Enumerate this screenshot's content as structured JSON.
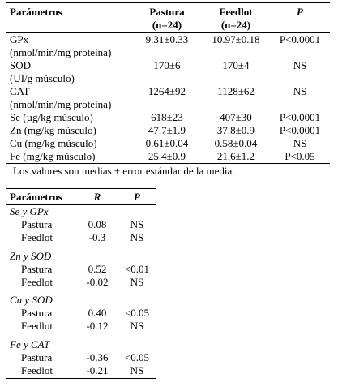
{
  "table1": {
    "headers": {
      "param": "Parámetros",
      "pastura": "Pastura",
      "pastura_n": "(n=24)",
      "feedlot": "Feedlot",
      "feedlot_n": "(n=24)",
      "p": "P"
    },
    "rows": [
      {
        "param": "GPx",
        "unit": "(nmol/min/mg proteína)",
        "pastura": "9.31±0.33",
        "feedlot": "10.97±0.18",
        "p": "P<0.0001"
      },
      {
        "param": "SOD",
        "unit": "(UI/g músculo)",
        "pastura": "170±6",
        "feedlot": "170±4",
        "p": "NS"
      },
      {
        "param": "CAT",
        "unit": "(nmol/min/mg proteína)",
        "pastura": "1264±92",
        "feedlot": "1128±62",
        "p": "NS"
      },
      {
        "param": "Se (µg/kg músculo)",
        "pastura": "618±23",
        "feedlot": "407±30",
        "p": "P<0.0001"
      },
      {
        "param": "Zn (mg/kg músculo)",
        "pastura": "47.7±1.9",
        "feedlot": "37.8±0.9",
        "p": "P<0.0001"
      },
      {
        "param": "Cu (mg/kg músculo)",
        "pastura": "0.61±0.04",
        "feedlot": "0.58±0.04",
        "p": "NS"
      },
      {
        "param": "Fe (mg/kg músculo)",
        "pastura": "25.4±0.9",
        "feedlot": "21.6±1.2",
        "p": "P<0.05"
      }
    ],
    "footnote": "Los valores son medias ± error estándar de la media."
  },
  "table2": {
    "headers": {
      "param": "Parámetros",
      "r": "R",
      "p": "P"
    },
    "groups": [
      {
        "title": "Se y GPx",
        "rows": [
          {
            "label": "Pastura",
            "r": "0.08",
            "p": "NS"
          },
          {
            "label": "Feedlot",
            "r": "-0.3",
            "p": "NS"
          }
        ]
      },
      {
        "title": "Zn y SOD",
        "rows": [
          {
            "label": "Pastura",
            "r": "0.52",
            "p": "<0.01"
          },
          {
            "label": "Feedlot",
            "r": "-0.02",
            "p": "NS"
          }
        ]
      },
      {
        "title": "Cu y SOD",
        "rows": [
          {
            "label": "Pastura",
            "r": "0.40",
            "p": "<0.05"
          },
          {
            "label": "Feedlot",
            "r": "-0.12",
            "p": "NS"
          }
        ]
      },
      {
        "title": "Fe y CAT",
        "rows": [
          {
            "label": "Pastura",
            "r": "-0.36",
            "p": "<0.05"
          },
          {
            "label": "Feedlot",
            "r": "-0.21",
            "p": "NS"
          }
        ]
      }
    ]
  }
}
